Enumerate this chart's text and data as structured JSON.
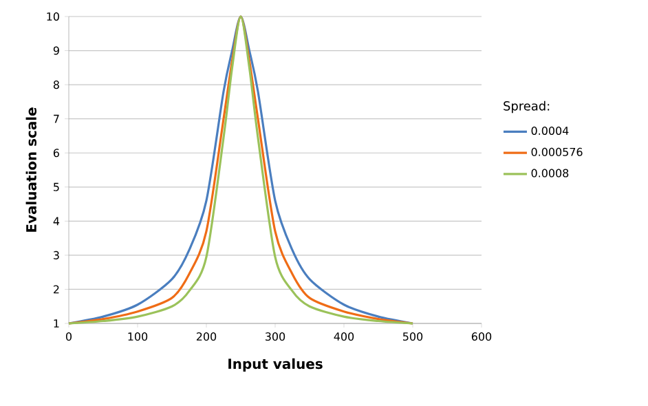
{
  "chart_data": {
    "type": "line",
    "xlabel": "Input values",
    "ylabel": "Evaluation scale",
    "legend_title": "Spread:",
    "xlim": [
      0,
      600
    ],
    "xticks": [
      0,
      100,
      200,
      300,
      400,
      500,
      600
    ],
    "ylim": [
      1,
      10
    ],
    "yticks": [
      1,
      2,
      3,
      4,
      5,
      6,
      7,
      8,
      9,
      10
    ],
    "grid": "y",
    "legend": "right",
    "marker": "none",
    "line_style": "solid",
    "x": [
      0,
      50,
      100,
      150,
      175,
      200,
      225,
      237.5,
      250,
      262.5,
      275,
      300,
      325,
      350,
      400,
      450,
      500
    ],
    "series": [
      {
        "name": "0.0004",
        "color": "#4a7ebf",
        "values": [
          1,
          1.2,
          1.55,
          2.3,
          3.15,
          4.6,
          7.8,
          9.0,
          10,
          9.0,
          7.8,
          4.6,
          3.15,
          2.3,
          1.55,
          1.2,
          1
        ]
      },
      {
        "name": "0.000576",
        "color": "#ef6c16",
        "values": [
          1,
          1.13,
          1.35,
          1.75,
          2.45,
          3.7,
          7.0,
          8.7,
          10,
          8.7,
          7.0,
          3.7,
          2.45,
          1.75,
          1.35,
          1.13,
          1
        ]
      },
      {
        "name": "0.0008",
        "color": "#9bc25a",
        "values": [
          1,
          1.07,
          1.2,
          1.5,
          1.95,
          2.95,
          6.45,
          8.5,
          10,
          8.5,
          6.45,
          2.95,
          1.95,
          1.5,
          1.2,
          1.07,
          1
        ]
      }
    ]
  }
}
